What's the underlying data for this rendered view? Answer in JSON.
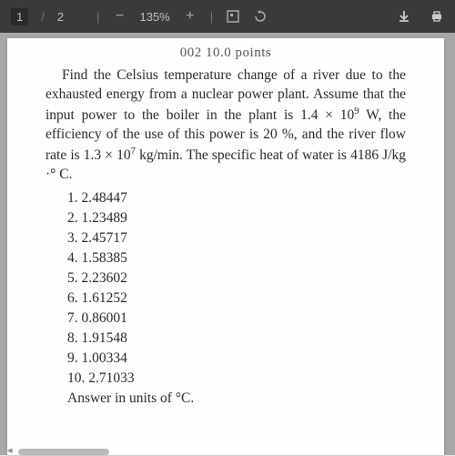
{
  "toolbar": {
    "page_current": "1",
    "page_sep": "/",
    "page_total": "2",
    "zoom_minus": "−",
    "zoom_value": "135%",
    "zoom_plus": "+",
    "background_color": "#3a3a3a",
    "text_color": "#c0c0c0"
  },
  "document": {
    "partial_header": "002     10.0 points",
    "problem_html": "Find the Celsius temperature change of a river due to the exhausted energy from a nuclear power plant.  Assume that the input power to the boiler in the plant is 1.4 × 10<sup>9</sup> W, the efficiency of the use of this power is 20 %, and the river flow rate is 1.3 × 10<sup>7</sup> kg/min.  The specific heat of water is 4186 J/kg ·° C.",
    "choices": [
      "1.  2.48447",
      "2.  1.23489",
      "3.  2.45717",
      "4.  1.58385",
      "5.  2.23602",
      "6.  1.61252",
      "7.  0.86001",
      "8.  1.91548",
      "9.  1.00334",
      "10.  2.71033"
    ],
    "answer_units": "Answer in units of °C.",
    "font_family": "Times New Roman",
    "font_size_pt": 12,
    "text_color": "#2a2a2a",
    "page_bg": "#fefefe",
    "wrapper_bg": "#a8a8a8"
  }
}
